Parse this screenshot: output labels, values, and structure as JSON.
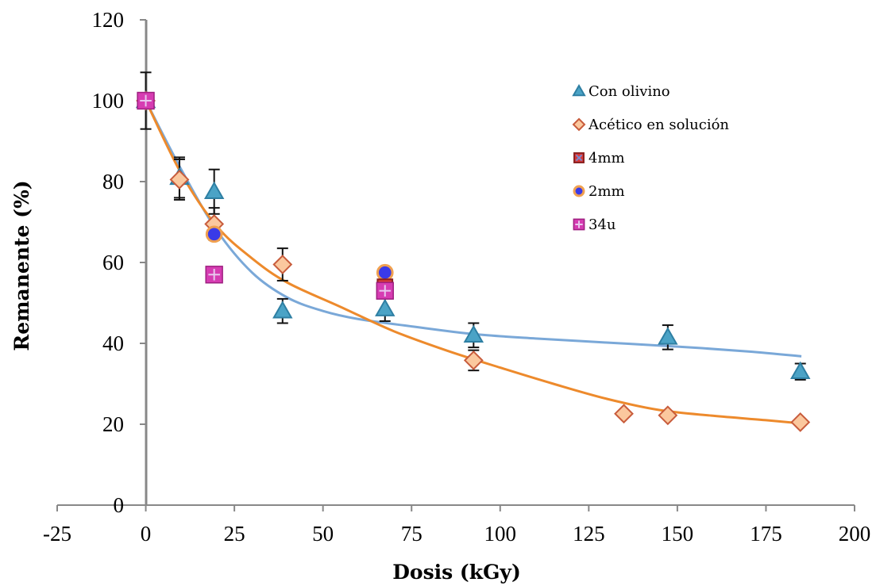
{
  "chart_data": {
    "type": "scatter",
    "xlabel": "Dosis (kGy)",
    "ylabel": "Remanente (%)",
    "xlim": [
      -25,
      200
    ],
    "ylim": [
      0,
      120
    ],
    "xticks": [
      "-25",
      "0",
      "25",
      "50",
      "75",
      "100",
      "125",
      "150",
      "175",
      "200"
    ],
    "yticks": [
      "0",
      "20",
      "40",
      "60",
      "80",
      "100",
      "120"
    ],
    "grid": false,
    "legend_position": "top-right",
    "series": [
      {
        "name": "Con olivino",
        "marker": "triangle",
        "fill": "#4ba3c6",
        "stroke": "#2e7fa3",
        "points": [
          {
            "x": 0,
            "y": 100,
            "err": 7
          },
          {
            "x": 9.5,
            "y": 81,
            "err": 5
          },
          {
            "x": 19.3,
            "y": 77.5,
            "err": 5.5
          },
          {
            "x": 38.6,
            "y": 48,
            "err": 3
          },
          {
            "x": 67.5,
            "y": 48.5,
            "err": 3
          },
          {
            "x": 92.5,
            "y": 42,
            "err": 3
          },
          {
            "x": 147.3,
            "y": 41.5,
            "err": 3
          },
          {
            "x": 184.7,
            "y": 33,
            "err": 2
          }
        ]
      },
      {
        "name": "Acético en solución",
        "marker": "diamond",
        "fill": "#fbc89e",
        "stroke": "#c85c3c",
        "points": [
          {
            "x": 0,
            "y": 100
          },
          {
            "x": 9.5,
            "y": 80.5,
            "err": 5
          },
          {
            "x": 19.3,
            "y": 69.5,
            "err": 4
          },
          {
            "x": 38.6,
            "y": 59.5,
            "err": 4
          },
          {
            "x": 92.5,
            "y": 35.8,
            "err": 2.5
          },
          {
            "x": 134.9,
            "y": 22.6
          },
          {
            "x": 147.3,
            "y": 22.2
          },
          {
            "x": 184.7,
            "y": 20.5
          }
        ]
      },
      {
        "name": "4mm",
        "marker": "square-x",
        "fill": "#d93a3a",
        "stroke": "#8a1f1f",
        "points": [
          {
            "x": 67.5,
            "y": 54
          }
        ]
      },
      {
        "name": "2mm",
        "marker": "circle",
        "fill": "#3a3ae8",
        "stroke": "#f0a050",
        "points": [
          {
            "x": 19.3,
            "y": 67
          },
          {
            "x": 67.5,
            "y": 57.5
          }
        ]
      },
      {
        "name": "34u",
        "marker": "square-plus",
        "fill": "#d63cb2",
        "stroke": "#9e1f80",
        "points": [
          {
            "x": 0,
            "y": 100
          },
          {
            "x": 19.3,
            "y": 57
          },
          {
            "x": 67.5,
            "y": 53
          }
        ]
      }
    ],
    "trendlines": [
      {
        "color": "#7aa8d8",
        "points": [
          [
            0,
            100
          ],
          [
            10,
            83
          ],
          [
            20,
            68
          ],
          [
            30,
            57.5
          ],
          [
            40,
            51.3
          ],
          [
            50,
            48
          ],
          [
            60,
            46
          ],
          [
            75,
            44.2
          ],
          [
            92.5,
            42.3
          ],
          [
            110,
            41.2
          ],
          [
            130,
            40.2
          ],
          [
            150,
            39.2
          ],
          [
            170,
            38
          ],
          [
            185,
            36.8
          ]
        ]
      },
      {
        "color": "#ed8a2c",
        "points": [
          [
            0,
            100
          ],
          [
            10,
            82
          ],
          [
            20,
            69
          ],
          [
            30,
            61
          ],
          [
            40,
            55
          ],
          [
            55,
            49
          ],
          [
            70,
            43
          ],
          [
            85,
            38.2
          ],
          [
            100,
            34
          ],
          [
            115,
            30
          ],
          [
            130,
            26.3
          ],
          [
            145,
            23.5
          ],
          [
            160,
            22.1
          ],
          [
            175,
            21
          ],
          [
            185,
            20.2
          ]
        ]
      }
    ]
  }
}
